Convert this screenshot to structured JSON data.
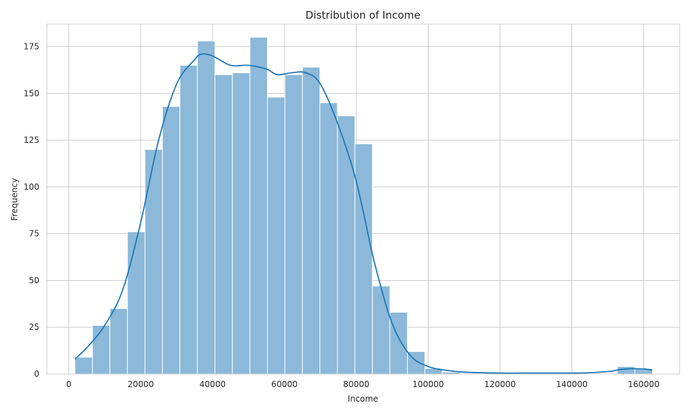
{
  "chart_data": {
    "type": "bar",
    "subtype": "histogram-with-kde",
    "title": "Distribution of Income",
    "xlabel": "Income",
    "ylabel": "Frequency",
    "xlim": [
      -6100,
      170000
    ],
    "ylim": [
      0,
      187
    ],
    "x_ticks": [
      0,
      20000,
      40000,
      60000,
      80000,
      100000,
      120000,
      140000,
      160000
    ],
    "y_ticks": [
      0,
      25,
      50,
      75,
      100,
      125,
      150,
      175
    ],
    "grid": true,
    "legend": "none",
    "bin_edges": [
      1700,
      6570,
      11440,
      16310,
      21180,
      26050,
      30920,
      35790,
      40660,
      45530,
      50400,
      55270,
      60140,
      65010,
      69880,
      74750,
      79620,
      84490,
      89360,
      94230,
      99100,
      103970,
      108840,
      113710,
      118580,
      123450,
      128320,
      133190,
      138060,
      142930,
      147800,
      152670,
      157540,
      162410
    ],
    "counts": [
      9,
      26,
      35,
      76,
      120,
      143,
      165,
      178,
      160,
      161,
      180,
      148,
      160,
      164,
      145,
      138,
      123,
      47,
      33,
      12,
      3,
      1,
      0,
      0,
      0,
      0,
      0,
      0,
      0,
      0,
      0,
      4,
      3
    ],
    "kde": {
      "x": [
        1700,
        5000,
        10000,
        15000,
        20000,
        25000,
        30000,
        35000,
        37000,
        40000,
        45000,
        50000,
        55000,
        58000,
        62000,
        66000,
        70000,
        75000,
        80000,
        85000,
        90000,
        95000,
        100000,
        105000,
        110000,
        120000,
        130000,
        140000,
        145000,
        150000,
        154000,
        157000,
        160000,
        162400
      ],
      "y": [
        8,
        14,
        26,
        45,
        81,
        125,
        155,
        168,
        171,
        170,
        165,
        165,
        163,
        160,
        161,
        161,
        155,
        133,
        103,
        60,
        27,
        10,
        4,
        2,
        1,
        0.5,
        0.5,
        0.5,
        0.7,
        1.3,
        2.5,
        2.8,
        2.7,
        2
      ]
    },
    "colors": {
      "bar_fill": "#8cb9d9",
      "bar_edge": "#ffffff",
      "kde_line": "#1f77b4",
      "grid": "#cccccc",
      "frame": "#cccccc",
      "text": "#262626"
    }
  }
}
